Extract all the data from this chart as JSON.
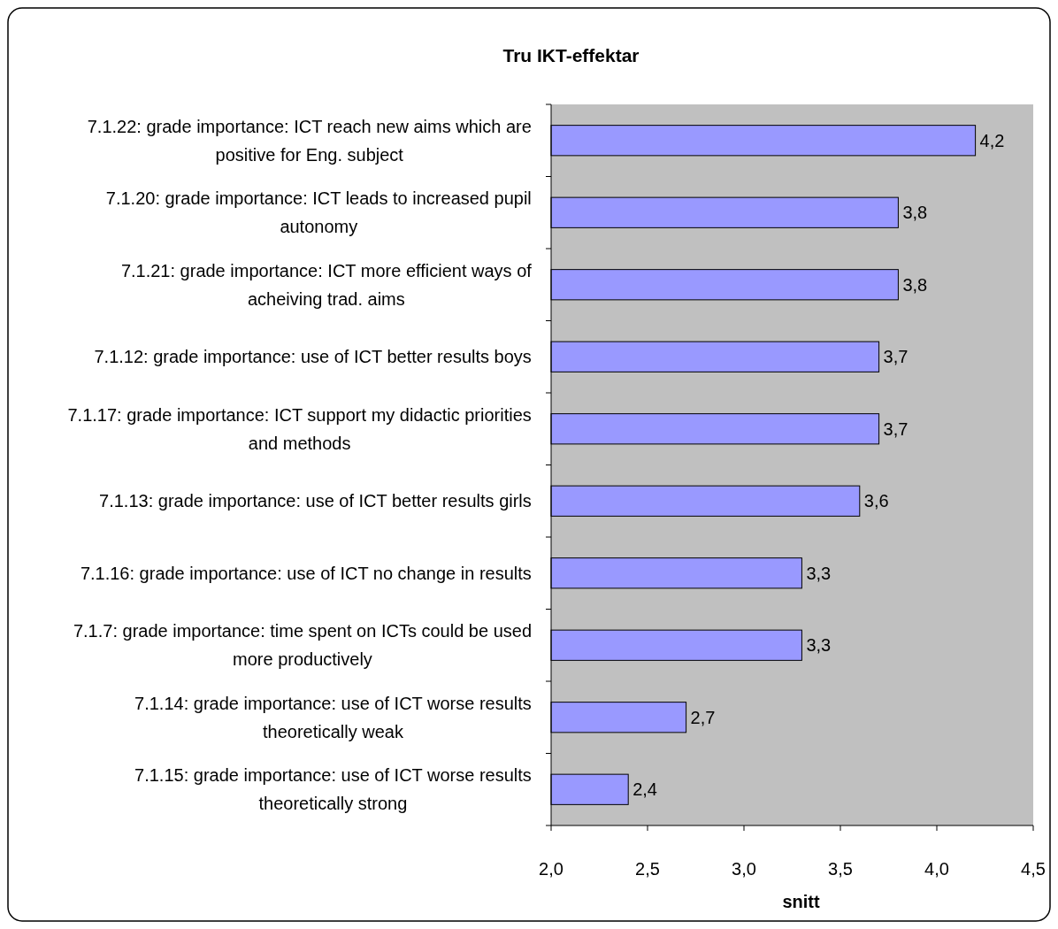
{
  "chart_data": {
    "type": "bar",
    "orientation": "horizontal",
    "title": "Tru IKT-effektar",
    "xlabel": "snitt",
    "categories": [
      "7.1.22: grade importance: ICT reach new aims which are positive for Eng. subject",
      "7.1.20: grade importance: ICT leads to increased pupil autonomy",
      "7.1.21: grade importance: ICT more efficient ways of acheiving trad. aims",
      "7.1.12: grade importance: use of ICT better results boys",
      "7.1.17: grade importance: ICT support my didactic priorities and methods",
      "7.1.13: grade importance: use of ICT better results girls",
      "7.1.16: grade importance: use of ICT no change in results",
      "7.1.7: grade importance: time spent on ICTs could be used more productively",
      "7.1.14: grade importance: use of ICT worse results theoretically weak",
      "7.1.15: grade importance: use of ICT worse results theoretically strong"
    ],
    "values": [
      4.2,
      3.8,
      3.8,
      3.7,
      3.7,
      3.6,
      3.3,
      3.3,
      2.7,
      2.4
    ],
    "value_labels": [
      "4,2",
      "3,8",
      "3,8",
      "3,7",
      "3,7",
      "3,6",
      "3,3",
      "3,3",
      "2,7",
      "2,4"
    ],
    "color": "#9999ff",
    "xlim": [
      2,
      4.5
    ],
    "xticks": [
      {
        "value": 2,
        "label": "2,0"
      },
      {
        "value": 2.5,
        "label": "2,5"
      },
      {
        "value": 3,
        "label": "3,0"
      },
      {
        "value": 3.5,
        "label": "3,5"
      },
      {
        "value": 4,
        "label": "4,0"
      },
      {
        "value": 4.5,
        "label": "4,5"
      }
    ],
    "grid": false
  }
}
